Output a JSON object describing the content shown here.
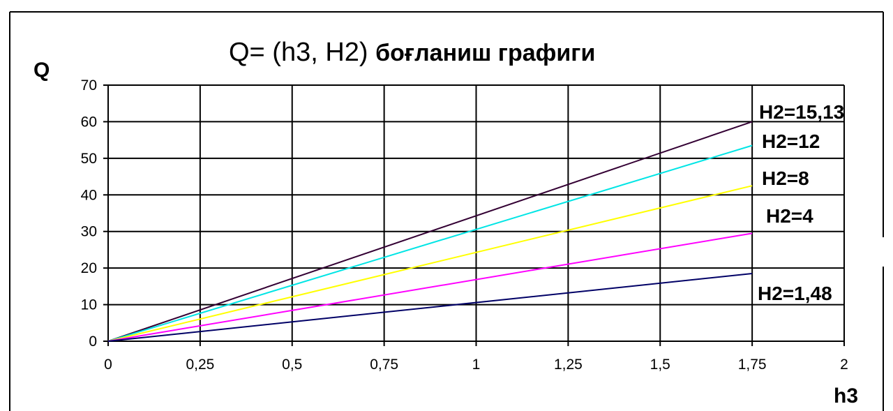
{
  "chart_data": {
    "type": "line",
    "title": "Q= (h3, H2) боғланиш графиги",
    "title_parts": [
      "Q= (h3, H2) ",
      "боғланиш графиги"
    ],
    "xlabel": "h3",
    "ylabel": "Q",
    "xlim": [
      0,
      2
    ],
    "ylim": [
      0,
      70
    ],
    "x_ticks": [
      0,
      0.25,
      0.5,
      0.75,
      1,
      1.25,
      1.5,
      1.75,
      2
    ],
    "x_tick_labels": [
      "0",
      "0,25",
      "0,5",
      "0,75",
      "1",
      "1,25",
      "1,5",
      "1,75",
      "2"
    ],
    "y_ticks": [
      0,
      10,
      20,
      30,
      40,
      50,
      60,
      70
    ],
    "y_tick_labels": [
      "0",
      "10",
      "20",
      "30",
      "40",
      "50",
      "60",
      "70"
    ],
    "grid": true,
    "legend": "labels at line ends on right",
    "series": [
      {
        "name": "H2=15,13",
        "color": "#330033",
        "x": [
          0,
          1.75
        ],
        "y": [
          0,
          60
        ]
      },
      {
        "name": "H2=12",
        "color": "#00e5e5",
        "x": [
          0,
          1.75
        ],
        "y": [
          0,
          53.5
        ]
      },
      {
        "name": "H2=8",
        "color": "#ffff00",
        "x": [
          0,
          1.75
        ],
        "y": [
          0,
          42.5
        ]
      },
      {
        "name": "H2=4",
        "color": "#ff00ff",
        "x": [
          0,
          1.75
        ],
        "y": [
          0,
          29.5
        ]
      },
      {
        "name": "H2=1,48",
        "color": "#000066",
        "x": [
          0,
          1.75
        ],
        "y": [
          0,
          18.5
        ]
      }
    ]
  }
}
